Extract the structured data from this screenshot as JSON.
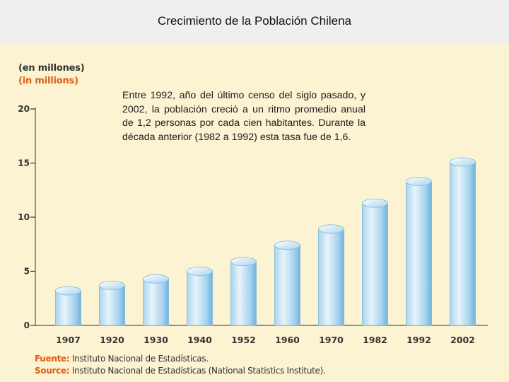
{
  "header": {
    "title": "Crecimiento de la Población Chilena"
  },
  "unit_labels": {
    "es": "(en millones)",
    "en": "(in millions)"
  },
  "note": "Entre 1992, año del último censo del siglo pasado, y 2002, la población creció a un ritmo promedio anual de 1,2 personas por cada cien habitantes. Durante la década anterior (1982 a 1992) esta tasa fue de 1,6.",
  "source": {
    "es_label": "Fuente:",
    "es_text": "Instituto Nacional de Estadísticas.",
    "en_label": "Source:",
    "en_text": "Instituto Nacional de Estadísticas (National Statistics Institute)."
  },
  "colors": {
    "panel_bg": "#fbf3d2",
    "bar_light": "#e8f4fb",
    "bar_mid": "#a9d4ee",
    "bar_dark": "#6fb3de",
    "accent": "#e05d12"
  },
  "chart_data": {
    "type": "bar",
    "title": "Crecimiento de la Población Chilena",
    "ylabel": "(en millones) (in millions)",
    "xlabel": "",
    "categories": [
      "1907",
      "1920",
      "1930",
      "1940",
      "1952",
      "1960",
      "1970",
      "1982",
      "1992",
      "2002"
    ],
    "values": [
      3.2,
      3.7,
      4.3,
      5.0,
      5.9,
      7.4,
      8.9,
      11.3,
      13.3,
      15.1
    ],
    "ylim": [
      0,
      20
    ],
    "yticks": [
      "0",
      "5",
      "10",
      "15",
      "20"
    ],
    "grid": false,
    "legend": "none"
  }
}
